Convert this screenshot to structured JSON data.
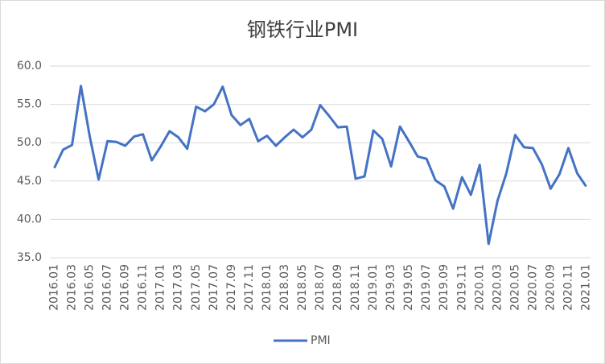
{
  "chart_data": {
    "type": "line",
    "title": "钢铁行业PMI",
    "categories": [
      "2016.01",
      null,
      "2016.03",
      null,
      "2016.05",
      null,
      "2016.07",
      null,
      "2016.09",
      null,
      "2016.11",
      null,
      "2017.01",
      null,
      "2017.03",
      null,
      "2017.05",
      null,
      "2017.07",
      null,
      "2017.09",
      null,
      "2017.11",
      null,
      "2018.01",
      null,
      "2018.03",
      null,
      "2018.05",
      null,
      "2018.07",
      null,
      "2018.09",
      null,
      "2018.11",
      null,
      "2019.01",
      null,
      "2019.03",
      null,
      "2019.05",
      null,
      "2019.07",
      null,
      "2019.09",
      null,
      "2019.11",
      null,
      "2020.01",
      null,
      "2020.03",
      null,
      "2020.05",
      null,
      "2020.07",
      null,
      "2020.09",
      null,
      "2020.11",
      null,
      "2021.01"
    ],
    "series": [
      {
        "name": "PMI",
        "color": "#4472c4",
        "values": [
          46.7,
          49.1,
          49.7,
          57.4,
          50.8,
          45.2,
          50.2,
          50.1,
          49.6,
          50.8,
          51.1,
          47.7,
          49.5,
          51.5,
          50.7,
          49.2,
          54.7,
          54.1,
          55.0,
          57.3,
          53.6,
          52.3,
          53.1,
          50.2,
          50.9,
          49.6,
          50.7,
          51.7,
          50.7,
          51.7,
          54.9,
          53.5,
          52.0,
          52.1,
          45.3,
          45.6,
          51.6,
          50.5,
          46.9,
          52.1,
          50.2,
          48.2,
          47.9,
          45.1,
          44.3,
          41.4,
          45.5,
          43.2,
          47.1,
          36.8,
          42.4,
          46.0,
          51.0,
          49.4,
          49.3,
          47.2,
          44.0,
          45.9,
          49.3,
          46.0,
          44.3
        ]
      }
    ],
    "ylim": [
      35,
      60
    ],
    "yticks": [
      {
        "value": 35,
        "label": "35.0"
      },
      {
        "value": 40,
        "label": "40.0"
      },
      {
        "value": 45,
        "label": "45.0"
      },
      {
        "value": 50,
        "label": "50.0"
      },
      {
        "value": 55,
        "label": "55.0"
      },
      {
        "value": 60,
        "label": "60.0"
      }
    ],
    "grid": true,
    "legend": "bottom"
  }
}
